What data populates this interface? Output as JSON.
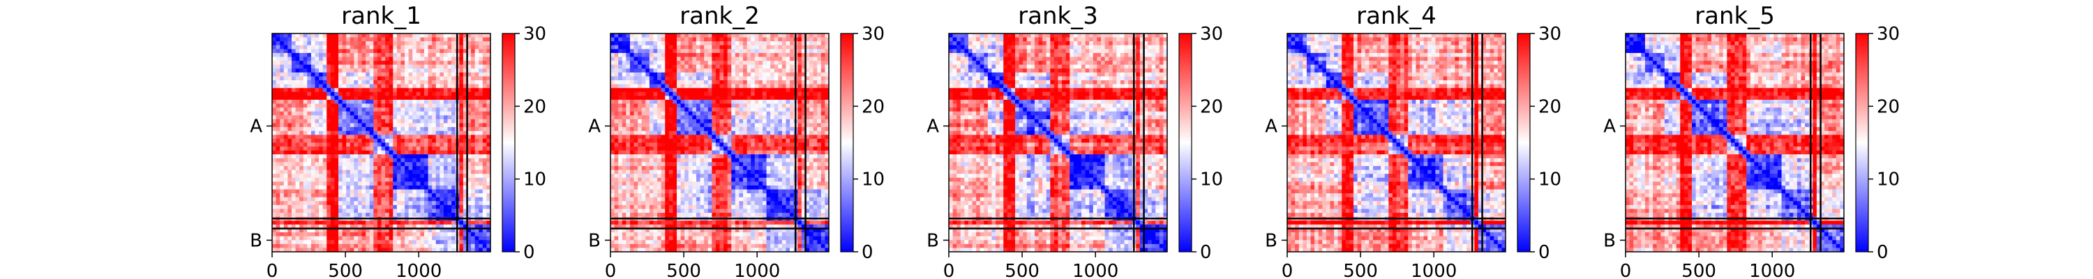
{
  "chart_data": [
    {
      "type": "heatmap",
      "title": "rank_1",
      "xticks": [
        0,
        500,
        1000
      ],
      "xlim": [
        0,
        1489
      ],
      "yticks": [
        {
          "label": "A",
          "value": 631
        },
        {
          "label": "B",
          "value": 1410
        }
      ],
      "chain_boundaries": [
        1262,
        1330
      ],
      "colorbar": {
        "min": 0,
        "max": 30,
        "ticks": [
          0,
          10,
          20,
          30
        ],
        "colors": [
          "#0000ff",
          "#ffffff",
          "#ff0000"
        ]
      }
    },
    {
      "type": "heatmap",
      "title": "rank_2",
      "xticks": [
        0,
        500,
        1000
      ],
      "xlim": [
        0,
        1489
      ],
      "yticks": [
        {
          "label": "A",
          "value": 631
        },
        {
          "label": "B",
          "value": 1410
        }
      ],
      "chain_boundaries": [
        1262,
        1330
      ],
      "colorbar": {
        "min": 0,
        "max": 30,
        "ticks": [
          0,
          10,
          20,
          30
        ],
        "colors": [
          "#0000ff",
          "#ffffff",
          "#ff0000"
        ]
      }
    },
    {
      "type": "heatmap",
      "title": "rank_3",
      "xticks": [
        0,
        500,
        1000
      ],
      "xlim": [
        0,
        1489
      ],
      "yticks": [
        {
          "label": "A",
          "value": 631
        },
        {
          "label": "B",
          "value": 1410
        }
      ],
      "chain_boundaries": [
        1262,
        1330
      ],
      "colorbar": {
        "min": 0,
        "max": 30,
        "ticks": [
          0,
          10,
          20,
          30
        ],
        "colors": [
          "#0000ff",
          "#ffffff",
          "#ff0000"
        ]
      }
    },
    {
      "type": "heatmap",
      "title": "rank_4",
      "xticks": [
        0,
        500,
        1000
      ],
      "xlim": [
        0,
        1489
      ],
      "yticks": [
        {
          "label": "A",
          "value": 631
        },
        {
          "label": "B",
          "value": 1410
        }
      ],
      "chain_boundaries": [
        1262,
        1330
      ],
      "colorbar": {
        "min": 0,
        "max": 30,
        "ticks": [
          0,
          10,
          20,
          30
        ],
        "colors": [
          "#0000ff",
          "#ffffff",
          "#ff0000"
        ]
      }
    },
    {
      "type": "heatmap",
      "title": "rank_5",
      "xticks": [
        0,
        500,
        1000
      ],
      "xlim": [
        0,
        1489
      ],
      "yticks": [
        {
          "label": "A",
          "value": 631
        },
        {
          "label": "B",
          "value": 1410
        }
      ],
      "chain_boundaries": [
        1262,
        1330
      ],
      "colorbar": {
        "min": 0,
        "max": 30,
        "ticks": [
          0,
          10,
          20,
          30
        ],
        "colors": [
          "#0000ff",
          "#ffffff",
          "#ff0000"
        ]
      }
    }
  ]
}
